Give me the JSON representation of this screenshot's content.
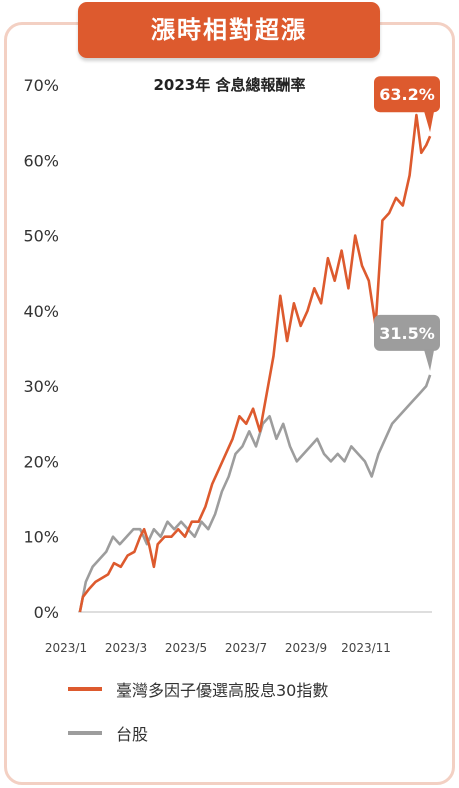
{
  "header": {
    "banner": "漲時相對超漲",
    "subtitle": "2023年 含息總報酬率"
  },
  "chart_data": {
    "type": "line",
    "title": "2023年 含息總報酬率",
    "x_range": [
      "2023-01-01",
      "2023-12-31"
    ],
    "x_ticks": [
      "2023/1",
      "2023/3",
      "2023/5",
      "2023/7",
      "2023/9",
      "2023/11"
    ],
    "y_ticks": [
      "0%",
      "10%",
      "20%",
      "30%",
      "40%",
      "50%",
      "60%",
      "70%"
    ],
    "ylim": [
      0,
      70
    ],
    "series": [
      {
        "name": "臺灣多因子優選高股息30指數",
        "color": "#dd5a2e",
        "end_label": "63.2%",
        "points": [
          [
            "2023-01-03",
            0
          ],
          [
            "2023-01-06",
            2
          ],
          [
            "2023-01-12",
            3
          ],
          [
            "2023-01-19",
            4
          ],
          [
            "2023-02-01",
            5
          ],
          [
            "2023-02-07",
            6.5
          ],
          [
            "2023-02-14",
            6
          ],
          [
            "2023-02-21",
            7.5
          ],
          [
            "2023-02-28",
            8
          ],
          [
            "2023-03-06",
            10
          ],
          [
            "2023-03-10",
            11
          ],
          [
            "2023-03-15",
            9
          ],
          [
            "2023-03-20",
            6
          ],
          [
            "2023-03-24",
            9
          ],
          [
            "2023-03-31",
            10
          ],
          [
            "2023-04-07",
            10
          ],
          [
            "2023-04-14",
            11
          ],
          [
            "2023-04-21",
            10
          ],
          [
            "2023-04-28",
            12
          ],
          [
            "2023-05-05",
            12
          ],
          [
            "2023-05-12",
            14
          ],
          [
            "2023-05-19",
            17
          ],
          [
            "2023-05-26",
            19
          ],
          [
            "2023-06-02",
            21
          ],
          [
            "2023-06-09",
            23
          ],
          [
            "2023-06-16",
            26
          ],
          [
            "2023-06-23",
            25
          ],
          [
            "2023-06-30",
            27
          ],
          [
            "2023-07-07",
            24
          ],
          [
            "2023-07-14",
            29
          ],
          [
            "2023-07-21",
            34
          ],
          [
            "2023-07-28",
            42
          ],
          [
            "2023-08-04",
            36
          ],
          [
            "2023-08-11",
            41
          ],
          [
            "2023-08-18",
            38
          ],
          [
            "2023-08-25",
            40
          ],
          [
            "2023-09-01",
            43
          ],
          [
            "2023-09-08",
            41
          ],
          [
            "2023-09-15",
            47
          ],
          [
            "2023-09-22",
            44
          ],
          [
            "2023-09-29",
            48
          ],
          [
            "2023-10-06",
            43
          ],
          [
            "2023-10-13",
            50
          ],
          [
            "2023-10-20",
            46
          ],
          [
            "2023-10-27",
            44
          ],
          [
            "2023-11-03",
            38
          ],
          [
            "2023-11-10",
            52
          ],
          [
            "2023-11-17",
            53
          ],
          [
            "2023-11-24",
            55
          ],
          [
            "2023-12-01",
            54
          ],
          [
            "2023-12-08",
            58
          ],
          [
            "2023-12-15",
            66
          ],
          [
            "2023-12-20",
            61
          ],
          [
            "2023-12-25",
            62
          ],
          [
            "2023-12-29",
            63.2
          ]
        ]
      },
      {
        "name": "台股",
        "color": "#9d9d9d",
        "end_label": "31.5%",
        "points": [
          [
            "2023-01-03",
            0
          ],
          [
            "2023-01-09",
            4
          ],
          [
            "2023-01-16",
            6
          ],
          [
            "2023-01-30",
            8
          ],
          [
            "2023-02-06",
            10
          ],
          [
            "2023-02-13",
            9
          ],
          [
            "2023-02-20",
            10
          ],
          [
            "2023-02-27",
            11
          ],
          [
            "2023-03-06",
            11
          ],
          [
            "2023-03-13",
            9
          ],
          [
            "2023-03-20",
            11
          ],
          [
            "2023-03-27",
            10
          ],
          [
            "2023-04-03",
            12
          ],
          [
            "2023-04-10",
            11
          ],
          [
            "2023-04-17",
            12
          ],
          [
            "2023-04-24",
            11
          ],
          [
            "2023-05-01",
            10
          ],
          [
            "2023-05-08",
            12
          ],
          [
            "2023-05-15",
            11
          ],
          [
            "2023-05-22",
            13
          ],
          [
            "2023-05-29",
            16
          ],
          [
            "2023-06-05",
            18
          ],
          [
            "2023-06-12",
            21
          ],
          [
            "2023-06-19",
            22
          ],
          [
            "2023-06-26",
            24
          ],
          [
            "2023-07-03",
            22
          ],
          [
            "2023-07-10",
            25
          ],
          [
            "2023-07-17",
            26
          ],
          [
            "2023-07-24",
            23
          ],
          [
            "2023-07-31",
            25
          ],
          [
            "2023-08-07",
            22
          ],
          [
            "2023-08-14",
            20
          ],
          [
            "2023-08-21",
            21
          ],
          [
            "2023-08-28",
            22
          ],
          [
            "2023-09-04",
            23
          ],
          [
            "2023-09-11",
            21
          ],
          [
            "2023-09-18",
            20
          ],
          [
            "2023-09-25",
            21
          ],
          [
            "2023-10-02",
            20
          ],
          [
            "2023-10-09",
            22
          ],
          [
            "2023-10-16",
            21
          ],
          [
            "2023-10-23",
            20
          ],
          [
            "2023-10-30",
            18
          ],
          [
            "2023-11-06",
            21
          ],
          [
            "2023-11-13",
            23
          ],
          [
            "2023-11-20",
            25
          ],
          [
            "2023-11-27",
            26
          ],
          [
            "2023-12-04",
            27
          ],
          [
            "2023-12-11",
            28
          ],
          [
            "2023-12-18",
            29
          ],
          [
            "2023-12-25",
            30
          ],
          [
            "2023-12-29",
            31.5
          ]
        ]
      }
    ]
  }
}
